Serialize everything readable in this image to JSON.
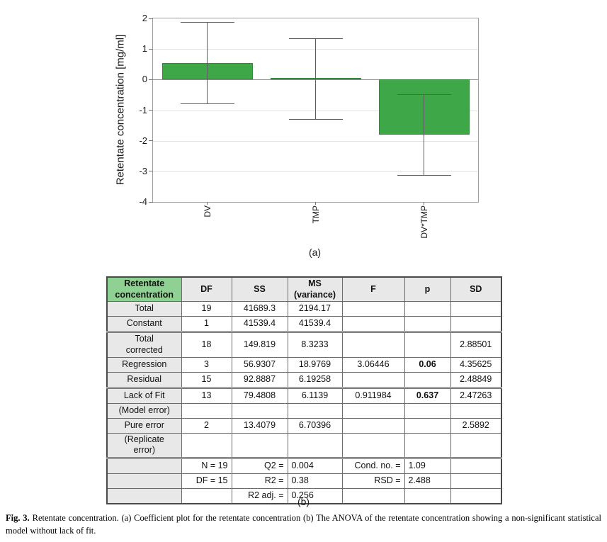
{
  "chart_data": {
    "type": "bar",
    "title": "",
    "ylabel": "Retentate concentration [mg/ml]",
    "xlabel": "",
    "categories": [
      "DV",
      "TMP",
      "DV*TMP"
    ],
    "values": [
      0.55,
      0.05,
      -1.8
    ],
    "error_low": [
      -0.78,
      -1.29,
      -3.12
    ],
    "error_high": [
      1.88,
      1.35,
      -0.49
    ],
    "ylim": [
      -4,
      2
    ],
    "yticks": [
      2,
      1,
      0,
      -1,
      -2,
      -3,
      -4
    ],
    "grid": true,
    "legend": "none",
    "bar_color": "#3ea849"
  },
  "labels": {
    "panel_a": "(a)",
    "panel_b": "(b)"
  },
  "anova_table": {
    "header": [
      "Retentate concentration",
      "DF",
      "SS",
      "MS (variance)",
      "F",
      "p",
      "SD"
    ],
    "rows": [
      {
        "cells": [
          "Total",
          "19",
          "41689.3",
          "2194.17",
          "",
          "",
          ""
        ]
      },
      {
        "cells": [
          "Constant",
          "1",
          "41539.4",
          "41539.4",
          "",
          "",
          ""
        ]
      },
      {
        "cells": [
          "Total corrected",
          "18",
          "149.819",
          "8.3233",
          "",
          "",
          "2.88501"
        ]
      },
      {
        "cells": [
          "Regression",
          "3",
          "56.9307",
          "18.9769",
          "3.06446",
          "0.06",
          "4.35625"
        ]
      },
      {
        "cells": [
          "Residual",
          "15",
          "92.8887",
          "6.19258",
          "",
          "",
          "2.48849"
        ]
      },
      {
        "cells": [
          "Lack of Fit",
          "13",
          "79.4808",
          "6.1139",
          "0.911984",
          "0.637",
          "2.47263"
        ]
      },
      {
        "cells": [
          "(Model error)",
          "",
          "",
          "",
          "",
          "",
          ""
        ]
      },
      {
        "cells": [
          "Pure error",
          "2",
          "13.4079",
          "6.70396",
          "",
          "",
          "2.5892"
        ]
      },
      {
        "cells": [
          "(Replicate error)",
          "",
          "",
          "",
          "",
          "",
          ""
        ]
      },
      {
        "cells": [
          "",
          "N = 19",
          "Q2 =",
          "0.004",
          "Cond. no. =",
          "1.09",
          ""
        ]
      },
      {
        "cells": [
          "",
          "DF = 15",
          "R2 =",
          "0.38",
          "RSD =",
          "2.488",
          ""
        ]
      },
      {
        "cells": [
          "",
          "",
          "R2 adj. =",
          "0.256",
          "",
          "",
          ""
        ]
      }
    ]
  },
  "caption": {
    "fig_label": "Fig. 3.",
    "text": "Retentate concentration. (a) Coefficient plot for the retentate concentration (b) The ANOVA of the retentate concentration showing a non-significant statistical model without lack of fit."
  },
  "colors": {
    "bar_green": "#3ea849",
    "bar_border_green": "#2f8a3a",
    "header_green": "#8fd192",
    "cell_gray": "#e8e8e8"
  }
}
